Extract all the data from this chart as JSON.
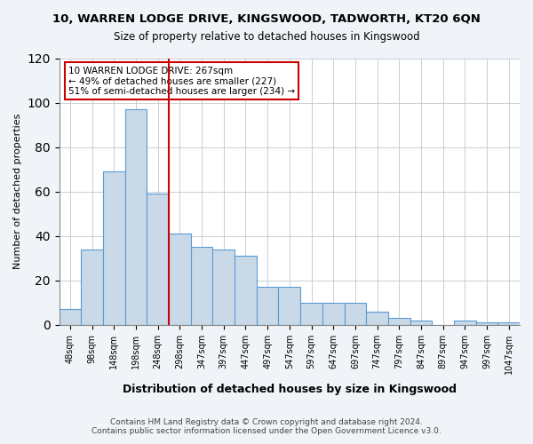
{
  "title_line1": "10, WARREN LODGE DRIVE, KINGSWOOD, TADWORTH, KT20 6QN",
  "title_line2": "Size of property relative to detached houses in Kingswood",
  "xlabel": "Distribution of detached houses by size in Kingswood",
  "ylabel": "Number of detached properties",
  "bin_labels": [
    "48sqm",
    "98sqm",
    "148sqm",
    "198sqm",
    "248sqm",
    "298sqm",
    "347sqm",
    "397sqm",
    "447sqm",
    "497sqm",
    "547sqm",
    "597sqm",
    "647sqm",
    "697sqm",
    "747sqm",
    "797sqm",
    "847sqm",
    "897sqm",
    "947sqm",
    "997sqm",
    "1047sqm"
  ],
  "bar_heights": [
    7,
    34,
    69,
    97,
    59,
    41,
    35,
    34,
    31,
    17,
    17,
    10,
    10,
    10,
    6,
    3,
    2,
    0,
    2,
    1,
    1
  ],
  "bar_color": "#c9d9e8",
  "bar_edge_color": "#5b9bd5",
  "property_bin_index": 4,
  "vline_color": "#cc0000",
  "annotation_text": "10 WARREN LODGE DRIVE: 267sqm\n← 49% of detached houses are smaller (227)\n51% of semi-detached houses are larger (234) →",
  "annotation_box_color": "#ffffff",
  "annotation_box_edge": "#cc0000",
  "ylim": [
    0,
    120
  ],
  "yticks": [
    0,
    20,
    40,
    60,
    80,
    100,
    120
  ],
  "footnote": "Contains HM Land Registry data © Crown copyright and database right 2024.\nContains public sector information licensed under the Open Government Licence v3.0.",
  "bg_color": "#f0f4f8",
  "plot_bg_color": "#ffffff"
}
